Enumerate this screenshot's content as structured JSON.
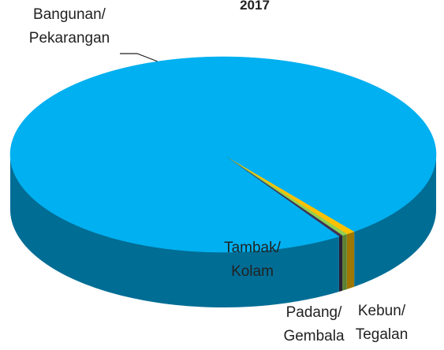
{
  "chart_data": {
    "type": "pie3d",
    "title": "2017",
    "categories": [
      "Kebun/ Tegalan",
      "Padang/ Gembala",
      "Tambak/ Kolam",
      "Bangunan/ Pekarangan"
    ],
    "values": [
      0.7,
      0.4,
      0.3,
      98.6
    ],
    "colors": [
      "#ffc000",
      "#92d050",
      "#403152",
      "#00b0f0"
    ]
  }
}
